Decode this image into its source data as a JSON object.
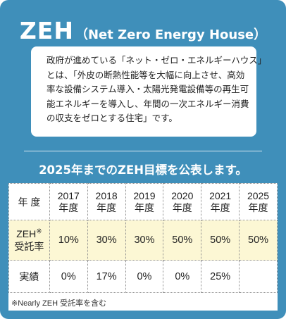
{
  "header": {
    "title_main": "ZEH",
    "title_sub": "（Net Zero Energy House）"
  },
  "description": {
    "lines": [
      "政府が進めている「ネット・ゼロ・エネルギーハウス」",
      "とは、「外皮の断熱性能等を大幅に向上させ、高効",
      "率な設備システム導入・太陽光発電設備等の再生可",
      "能エネルギーを導入し、年間の一次エネルギー消費",
      "の収支をゼロとする住宅」です。"
    ]
  },
  "subtitle": "2025年までのZEH目標を公表します。",
  "table": {
    "corner_label": "年 度",
    "years": [
      {
        "year": "2017",
        "unit": "年度"
      },
      {
        "year": "2018",
        "unit": "年度"
      },
      {
        "year": "2019",
        "unit": "年度"
      },
      {
        "year": "2020",
        "unit": "年度"
      },
      {
        "year": "2021",
        "unit": "年度"
      },
      {
        "year": "2025",
        "unit": "年度"
      }
    ],
    "target_row": {
      "label_line1": "ZEH",
      "label_mark": "※",
      "label_line2": "受託率",
      "values": [
        "10%",
        "30%",
        "30%",
        "50%",
        "50%",
        "50%"
      ]
    },
    "actual_row": {
      "label": "実績",
      "values": [
        "0%",
        "17%",
        "0%",
        "0%",
        "25%",
        ""
      ]
    },
    "footnote": "※Nearly ZEH 受託率を含む"
  },
  "colors": {
    "panel_background": "#3f8fba",
    "target_row_background": "#fcf7d4",
    "text_white": "#ffffff"
  }
}
